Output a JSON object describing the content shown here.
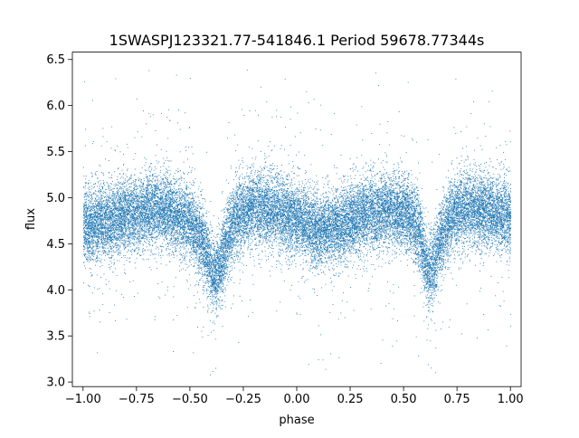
{
  "chart_data": {
    "type": "scatter",
    "title": "1SWASPJ123321.77-541846.1 Period 59678.77344s",
    "xlabel": "phase",
    "ylabel": "flux",
    "xlim": [
      -1.05,
      1.05
    ],
    "ylim": [
      2.95,
      6.58
    ],
    "xticks": [
      -1.0,
      -0.75,
      -0.5,
      -0.25,
      0.0,
      0.25,
      0.5,
      0.75,
      1.0
    ],
    "xtick_labels": [
      "−1.00",
      "−0.75",
      "−0.50",
      "−0.25",
      "0.00",
      "0.25",
      "0.50",
      "0.75",
      "1.00"
    ],
    "yticks": [
      3.0,
      3.5,
      4.0,
      4.5,
      5.0,
      5.5,
      6.0,
      6.5
    ],
    "ytick_labels": [
      "3.0",
      "3.5",
      "4.0",
      "4.5",
      "5.0",
      "5.5",
      "6.0",
      "6.5"
    ],
    "grid": false,
    "color": "#1f77b4",
    "series": [
      {
        "marker": "point",
        "trend_phase": [
          -1.0,
          -0.9,
          -0.8,
          -0.7,
          -0.6,
          -0.5,
          -0.45,
          -0.42,
          -0.39,
          -0.37,
          -0.35,
          -0.32,
          -0.28,
          -0.2,
          -0.1,
          0.0,
          0.1,
          0.2,
          0.3,
          0.4,
          0.5,
          0.55,
          0.58,
          0.61,
          0.63,
          0.65,
          0.68,
          0.72,
          0.8,
          0.9,
          1.0
        ],
        "trend_flux": [
          4.7,
          4.75,
          4.8,
          4.86,
          4.86,
          4.72,
          4.55,
          4.38,
          4.18,
          4.2,
          4.35,
          4.6,
          4.8,
          4.9,
          4.86,
          4.78,
          4.65,
          4.7,
          4.8,
          4.86,
          4.86,
          4.72,
          4.55,
          4.2,
          4.22,
          4.38,
          4.6,
          4.8,
          4.9,
          4.86,
          4.78
        ],
        "scatter_sd": 0.2,
        "n_points": 26000
      }
    ]
  }
}
